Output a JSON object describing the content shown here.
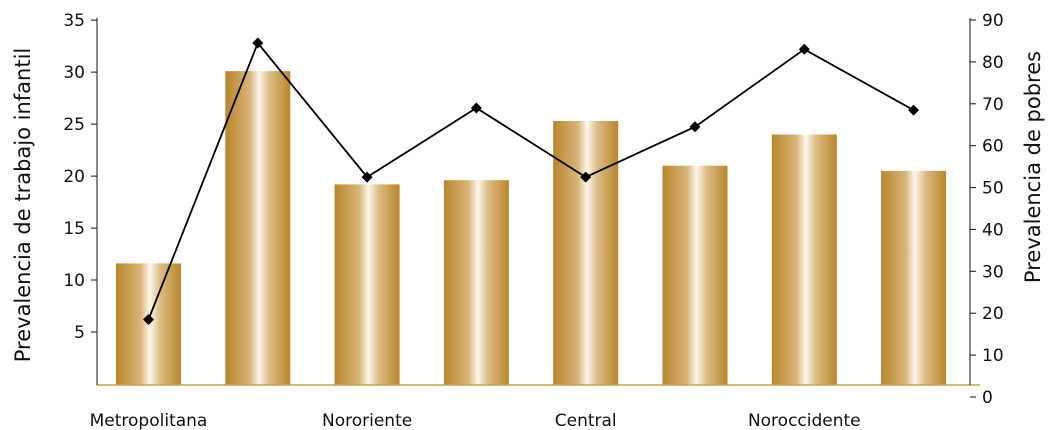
{
  "chart_data": {
    "type": "bar",
    "categories": [
      "Metropolitana",
      "",
      "Nororiente",
      "",
      "Central",
      "",
      "Noroccidente",
      ""
    ],
    "title": "",
    "ylabel": "Prevalencia de trabajo infantil",
    "y2label": "Prevalencia de pobres",
    "ylim": [
      0,
      35
    ],
    "y2lim": [
      0,
      90
    ],
    "yticks": [
      5,
      10,
      15,
      20,
      25,
      30,
      35
    ],
    "y2ticks": [
      0,
      10,
      20,
      30,
      40,
      50,
      60,
      70,
      80,
      90
    ],
    "grid": false,
    "series": [
      {
        "type": "bar",
        "axis": "left",
        "values": [
          11.6,
          30.1,
          19.2,
          19.6,
          25.3,
          21.0,
          24.0,
          20.5
        ]
      },
      {
        "type": "line",
        "axis": "right",
        "marker": "diamond",
        "values": [
          18.5,
          84.5,
          52.5,
          69.0,
          52.5,
          64.5,
          83.0,
          68.5
        ]
      }
    ],
    "colors": {
      "bar_dark": "#b8862b",
      "bar_light": "#fdf7ee",
      "line": "#000000",
      "baseline": "#c9a448",
      "axis": "#111111"
    }
  }
}
